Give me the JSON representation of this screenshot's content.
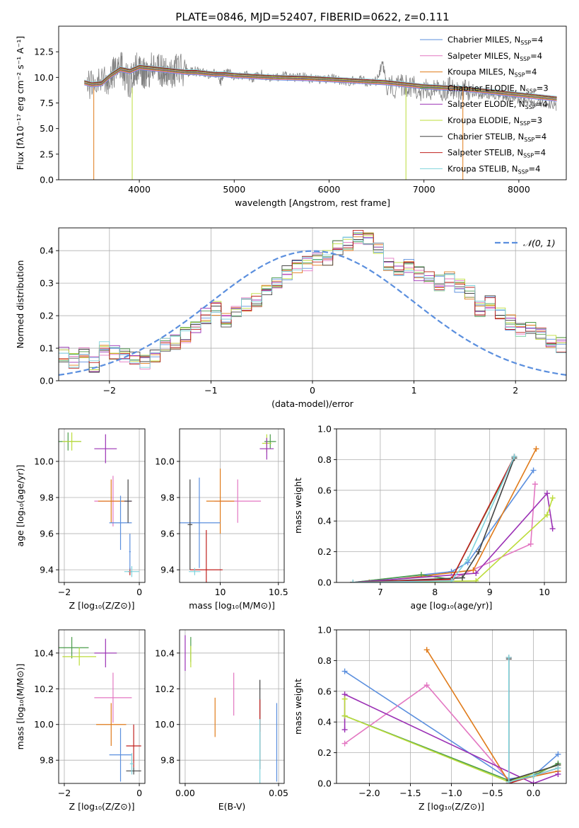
{
  "figure": {
    "title": "PLATE=0846, MJD=52407, FIBERID=0622, z=0.111"
  },
  "chart_data": [
    {
      "id": "spectrum",
      "type": "line",
      "title": "PLATE=0846, MJD=52407, FIBERID=0622, z=0.111",
      "xlabel": "wavelength [Angstrom, rest frame]",
      "ylabel": "Flux [fλ10⁻¹⁷ erg cm⁻² s⁻¹ A⁻¹]",
      "xlim": [
        3150,
        8500
      ],
      "ylim": [
        0,
        15
      ],
      "xticks": [
        4000,
        5000,
        6000,
        7000,
        8000
      ],
      "yticks": [
        0.0,
        2.5,
        5.0,
        7.5,
        10.0,
        12.5
      ],
      "grid": false,
      "legend_position": "top-right",
      "data_series": {
        "name": "",
        "color": "#808080",
        "x": [
          3450,
          3550,
          3650,
          3700,
          3750,
          3800,
          3850,
          3900,
          3950,
          4000,
          4050,
          4100,
          4150,
          4200,
          4250,
          4300,
          4350,
          4400,
          4500,
          4600,
          4700,
          4800,
          4860,
          4900,
          5000,
          5100,
          5200,
          5300,
          5400,
          5500,
          5600,
          5700,
          5800,
          5900,
          6000,
          6100,
          6200,
          6300,
          6400,
          6500,
          6563,
          6600,
          6700,
          6800,
          6900,
          7000,
          7100,
          7200,
          7300,
          7400,
          7500,
          7600,
          7700,
          7800,
          7900,
          8000,
          8100,
          8200,
          8300,
          8400
        ],
        "y": [
          9.3,
          9.2,
          9.5,
          10.3,
          10.6,
          11.5,
          10.2,
          9.4,
          10.8,
          11.0,
          10.5,
          10.2,
          11.4,
          11.0,
          10.6,
          10.7,
          10.2,
          10.9,
          10.5,
          10.6,
          10.3,
          10.4,
          9.6,
          10.5,
          10.2,
          10.3,
          10.0,
          10.3,
          9.9,
          10.1,
          10.0,
          10.1,
          9.9,
          9.7,
          9.9,
          9.8,
          9.6,
          9.8,
          9.5,
          9.6,
          11.5,
          9.5,
          9.0,
          9.3,
          9.1,
          8.7,
          8.8,
          8.9,
          9.0,
          8.6,
          8.5,
          8.3,
          8.4,
          8.2,
          8.1,
          7.9,
          7.8,
          7.6,
          7.4,
          7.2
        ]
      },
      "models": [
        {
          "name": "Chabrier MILES, N$_{SSP}$=4",
          "label": "Chabrier MILES, N",
          "sub": "SSP",
          "suffix": "=4",
          "color": "#5b8fde"
        },
        {
          "name": "Salpeter MILES, N$_{SSP}$=4",
          "label": "Salpeter MILES, N",
          "sub": "SSP",
          "suffix": "=4",
          "color": "#e377c2"
        },
        {
          "name": "Kroupa MILES, N$_{SSP}$=4",
          "label": "Kroupa MILES, N",
          "sub": "SSP",
          "suffix": "=4",
          "color": "#e07b1a"
        },
        {
          "name": "Chabrier ELODIE, N$_{SSP}$=3",
          "label": "Chabrier ELODIE, N",
          "sub": "SSP",
          "suffix": "=3",
          "color": "#4a9c4a"
        },
        {
          "name": "Salpeter ELODIE, N$_{SSP}$=4",
          "label": "Salpeter ELODIE, N",
          "sub": "SSP",
          "suffix": "=4",
          "color": "#9b30b5"
        },
        {
          "name": "Kroupa ELODIE, N$_{SSP}$=3",
          "label": "Kroupa ELODIE, N",
          "sub": "SSP",
          "suffix": "=3",
          "color": "#bcdc3a"
        },
        {
          "name": "Chabrier STELIB, N$_{SSP}$=4",
          "label": "Chabrier STELIB, N",
          "sub": "SSP",
          "suffix": "=4",
          "color": "#444444"
        },
        {
          "name": "Salpeter STELIB, N$_{SSP}$=4",
          "label": "Salpeter STELIB, N",
          "sub": "SSP",
          "suffix": "=4",
          "color": "#c0201e"
        },
        {
          "name": "Kroupa STELIB, N$_{SSP}$=4",
          "label": "Kroupa STELIB, N",
          "sub": "SSP",
          "suffix": "=4",
          "color": "#7fd3dc"
        }
      ],
      "model_curve": {
        "x": [
          3420,
          3500,
          3600,
          3700,
          3800,
          3900,
          4000,
          4100,
          4200,
          4300,
          4400,
          4500,
          4600,
          4700,
          4800,
          4900,
          5000,
          5200,
          5400,
          5600,
          5800,
          6000,
          6200,
          6400,
          6600,
          6800,
          7000,
          7200,
          7400,
          7600,
          7800,
          8000,
          8200,
          8400
        ],
        "y": [
          9.5,
          9.3,
          9.4,
          10.2,
          10.8,
          10.6,
          11.0,
          10.9,
          10.8,
          10.7,
          10.6,
          10.5,
          10.5,
          10.4,
          10.3,
          10.3,
          10.2,
          10.1,
          10.0,
          9.95,
          9.9,
          9.8,
          9.7,
          9.6,
          9.5,
          9.3,
          9.1,
          9.0,
          8.9,
          8.7,
          8.5,
          8.3,
          8.1,
          7.9
        ]
      }
    },
    {
      "id": "residuals",
      "type": "step",
      "xlabel": "(data-model)/error",
      "ylabel": "Normed distribution",
      "xlim": [
        -2.5,
        2.5
      ],
      "ylim": [
        0,
        0.47
      ],
      "xticks": [
        -2,
        -1,
        0,
        1,
        2
      ],
      "yticks": [
        0.0,
        0.1,
        0.2,
        0.3,
        0.4
      ],
      "grid": true,
      "legend_position": "top-right",
      "gaussian_label": "𝒩(0, 1)",
      "gaussian_color": "#5b8fde",
      "bin_width": 0.1,
      "bin_start": -2.5,
      "hist_values": [
        0.08,
        0.06,
        0.08,
        0.05,
        0.1,
        0.09,
        0.08,
        0.07,
        0.06,
        0.08,
        0.11,
        0.12,
        0.14,
        0.16,
        0.2,
        0.22,
        0.19,
        0.21,
        0.23,
        0.25,
        0.27,
        0.3,
        0.33,
        0.35,
        0.36,
        0.37,
        0.38,
        0.41,
        0.42,
        0.44,
        0.43,
        0.4,
        0.36,
        0.34,
        0.35,
        0.33,
        0.32,
        0.3,
        0.31,
        0.29,
        0.27,
        0.22,
        0.24,
        0.2,
        0.18,
        0.16,
        0.17,
        0.14,
        0.12,
        0.11
      ],
      "hist_spread": 0.025
    },
    {
      "id": "age_vs_Z",
      "type": "errorbar",
      "xlabel": "Z [log₁₀(Z/Z⊙)]",
      "ylabel": "age  [log₁₀(age/yr)]",
      "xlim": [
        -2.15,
        0.15
      ],
      "ylim": [
        9.33,
        10.18
      ],
      "xticks": [
        -2,
        0
      ],
      "yticks": [
        9.4,
        9.6,
        9.8,
        10.0
      ],
      "grid": true,
      "points": [
        {
          "x": -1.9,
          "y": 10.11,
          "xerr": 0.35,
          "yerr": 0.05,
          "color": "#4a9c4a"
        },
        {
          "x": -1.8,
          "y": 10.11,
          "xerr": 0.25,
          "yerr": 0.05,
          "color": "#bcdc3a"
        },
        {
          "x": -0.9,
          "y": 10.07,
          "xerr": 0.3,
          "yerr": 0.08,
          "color": "#9b30b5"
        },
        {
          "x": -0.7,
          "y": 9.78,
          "xerr": 0.5,
          "yerr": 0.14,
          "color": "#e377c2"
        },
        {
          "x": -0.75,
          "y": 9.78,
          "xerr": 0.35,
          "yerr": 0.12,
          "color": "#e07b1a"
        },
        {
          "x": -0.5,
          "y": 9.66,
          "xerr": 0.3,
          "yerr": 0.15,
          "color": "#5b8fde"
        },
        {
          "x": -0.3,
          "y": 9.78,
          "xerr": 0.1,
          "yerr": 0.12,
          "color": "#444444"
        },
        {
          "x": -0.25,
          "y": 9.39,
          "xerr": 0.05,
          "yerr": 0.02,
          "color": "#c0201e"
        },
        {
          "x": -0.2,
          "y": 9.39,
          "xerr": 0.2,
          "yerr": 0.03,
          "color": "#7fd3dc"
        },
        {
          "x": -0.25,
          "y": 9.5,
          "xerr": 0.02,
          "yerr": 0.1,
          "color": "#5b8fde"
        }
      ]
    },
    {
      "id": "age_vs_mass",
      "type": "errorbar",
      "xlabel": "mass [log₁₀(M/M⊙)]",
      "ylabel": "",
      "xlim": [
        9.65,
        10.55
      ],
      "ylim": [
        9.33,
        10.18
      ],
      "xticks": [
        10.0,
        10.5
      ],
      "xtick_labels": [
        "10",
        "10.5"
      ],
      "yticks": [
        9.4,
        9.6,
        9.8,
        10.0
      ],
      "grid": true,
      "points": [
        {
          "x": 10.43,
          "y": 10.11,
          "xerr": 0.05,
          "yerr": 0.04,
          "color": "#4a9c4a"
        },
        {
          "x": 10.4,
          "y": 10.1,
          "xerr": 0.04,
          "yerr": 0.05,
          "color": "#bcdc3a"
        },
        {
          "x": 10.4,
          "y": 10.07,
          "xerr": 0.06,
          "yerr": 0.06,
          "color": "#9b30b5"
        },
        {
          "x": 10.15,
          "y": 9.78,
          "xerr": 0.2,
          "yerr": 0.12,
          "color": "#e377c2"
        },
        {
          "x": 10.0,
          "y": 9.78,
          "xerr": 0.12,
          "yerr": 0.18,
          "color": "#e07b1a"
        },
        {
          "x": 9.82,
          "y": 9.66,
          "xerr": 0.18,
          "yerr": 0.25,
          "color": "#5b8fde"
        },
        {
          "x": 9.74,
          "y": 9.65,
          "xerr": 0.02,
          "yerr": 0.25,
          "color": "#444444"
        },
        {
          "x": 9.88,
          "y": 9.4,
          "xerr": 0.14,
          "yerr": 0.22,
          "color": "#c0201e"
        },
        {
          "x": 9.78,
          "y": 9.39,
          "xerr": 0.05,
          "yerr": 0.02,
          "color": "#7fd3dc"
        }
      ]
    },
    {
      "id": "massweight_vs_age",
      "type": "line",
      "xlabel": "age  [log₁₀(age/yr)]",
      "ylabel": "mass weight",
      "xlim": [
        6.2,
        10.4
      ],
      "ylim": [
        0,
        1
      ],
      "xticks": [
        7,
        8,
        9,
        10
      ],
      "yticks": [
        0.0,
        0.2,
        0.4,
        0.6,
        0.8,
        1.0
      ],
      "grid": true,
      "series": [
        {
          "color": "#5b8fde",
          "x": [
            6.5,
            8.3,
            8.6,
            9.8
          ],
          "y": [
            0.0,
            0.07,
            0.13,
            0.73
          ]
        },
        {
          "color": "#e377c2",
          "x": [
            6.5,
            8.3,
            9.75,
            9.83
          ],
          "y": [
            0.0,
            0.02,
            0.25,
            0.64
          ]
        },
        {
          "color": "#e07b1a",
          "x": [
            6.8,
            8.7,
            9.85
          ],
          "y": [
            0.0,
            0.08,
            0.87
          ]
        },
        {
          "color": "#4a9c4a",
          "x": [
            6.5,
            7.75,
            8.3,
            9.45
          ],
          "y": [
            0.0,
            0.05,
            0.02,
            0.81
          ]
        },
        {
          "color": "#9b30b5",
          "x": [
            6.5,
            8.75,
            10.05,
            10.15
          ],
          "y": [
            0.0,
            0.06,
            0.58,
            0.35
          ]
        },
        {
          "color": "#bcdc3a",
          "x": [
            6.5,
            8.75,
            10.05,
            10.15
          ],
          "y": [
            0.0,
            0.01,
            0.44,
            0.55
          ]
        },
        {
          "color": "#444444",
          "x": [
            6.5,
            8.5,
            8.8,
            9.45
          ],
          "y": [
            0.0,
            0.03,
            0.2,
            0.81
          ]
        },
        {
          "color": "#c0201e",
          "x": [
            6.5,
            8.3,
            9.45
          ],
          "y": [
            0.0,
            0.02,
            0.82
          ]
        },
        {
          "color": "#7fd3dc",
          "x": [
            6.5,
            8.3,
            8.6,
            9.45
          ],
          "y": [
            0.0,
            0.01,
            0.15,
            0.82
          ]
        }
      ]
    },
    {
      "id": "mass_vs_Z",
      "type": "errorbar",
      "xlabel": "Z [log₁₀(Z/Z⊙)]",
      "ylabel": "mass [log₁₀(M/M⊙)]",
      "xlim": [
        -2.15,
        0.15
      ],
      "ylim": [
        9.67,
        10.53
      ],
      "xticks": [
        -2,
        0
      ],
      "yticks": [
        9.8,
        10.0,
        10.2,
        10.4
      ],
      "grid": true,
      "points": [
        {
          "x": -1.8,
          "y": 10.43,
          "xerr": 0.45,
          "yerr": 0.06,
          "color": "#4a9c4a"
        },
        {
          "x": -1.6,
          "y": 10.38,
          "xerr": 0.45,
          "yerr": 0.05,
          "color": "#bcdc3a"
        },
        {
          "x": -0.9,
          "y": 10.4,
          "xerr": 0.3,
          "yerr": 0.08,
          "color": "#9b30b5"
        },
        {
          "x": -0.7,
          "y": 10.15,
          "xerr": 0.5,
          "yerr": 0.14,
          "color": "#e377c2"
        },
        {
          "x": -0.75,
          "y": 10.0,
          "xerr": 0.4,
          "yerr": 0.12,
          "color": "#e07b1a"
        },
        {
          "x": -0.5,
          "y": 9.83,
          "xerr": 0.3,
          "yerr": 0.15,
          "color": "#5b8fde"
        },
        {
          "x": -0.15,
          "y": 9.88,
          "xerr": 0.2,
          "yerr": 0.12,
          "color": "#c0201e"
        },
        {
          "x": -0.15,
          "y": 9.74,
          "xerr": 0.2,
          "yerr": 0.02,
          "color": "#444444"
        },
        {
          "x": -0.2,
          "y": 9.78,
          "xerr": 0.05,
          "yerr": 0.06,
          "color": "#7fd3dc"
        }
      ]
    },
    {
      "id": "mass_vs_EBV",
      "type": "errorbar",
      "xlabel": "E(B-V)",
      "ylabel": "",
      "xlim": [
        -0.003,
        0.053
      ],
      "ylim": [
        9.67,
        10.53
      ],
      "xticks": [
        0.0,
        0.05
      ],
      "xtick_labels": [
        "0.00",
        "0.05"
      ],
      "yticks": [
        9.8,
        10.0,
        10.2,
        10.4
      ],
      "grid": true,
      "points": [
        {
          "x": 0.0,
          "y": 10.4,
          "xerr": 0,
          "yerr": 0.1,
          "color": "#9b30b5"
        },
        {
          "x": 0.003,
          "y": 10.42,
          "xerr": 0,
          "yerr": 0.07,
          "color": "#4a9c4a"
        },
        {
          "x": 0.003,
          "y": 10.38,
          "xerr": 0,
          "yerr": 0.06,
          "color": "#bcdc3a"
        },
        {
          "x": 0.026,
          "y": 10.17,
          "xerr": 0,
          "yerr": 0.12,
          "color": "#e377c2"
        },
        {
          "x": 0.016,
          "y": 10.04,
          "xerr": 0,
          "yerr": 0.11,
          "color": "#e07b1a"
        },
        {
          "x": 0.04,
          "y": 10.0,
          "xerr": 0,
          "yerr": 0.25,
          "color": "#444444"
        },
        {
          "x": 0.04,
          "y": 10.05,
          "xerr": 0,
          "yerr": 0.09,
          "color": "#c0201e"
        },
        {
          "x": 0.04,
          "y": 9.83,
          "xerr": 0,
          "yerr": 0.2,
          "color": "#7fd3dc"
        },
        {
          "x": 0.049,
          "y": 9.9,
          "xerr": 0,
          "yerr": 0.22,
          "color": "#5b8fde"
        }
      ]
    },
    {
      "id": "massweight_vs_Z",
      "type": "line",
      "xlabel": "Z [log₁₀(Z/Z⊙)]",
      "ylabel": "mass weight",
      "xlim": [
        -2.4,
        0.4
      ],
      "ylim": [
        0,
        1
      ],
      "xticks": [
        -2.0,
        -1.5,
        -1.0,
        -0.5,
        0.0
      ],
      "xtick_labels": [
        "−2.0",
        "−1.5",
        "−1.0",
        "−0.5",
        "0.0"
      ],
      "yticks": [
        0.0,
        0.2,
        0.4,
        0.6,
        0.8,
        1.0
      ],
      "grid": true,
      "series": [
        {
          "color": "#5b8fde",
          "x": [
            -2.3,
            -0.3,
            0.0,
            0.3
          ],
          "y": [
            0.73,
            0.03,
            0.05,
            0.19
          ]
        },
        {
          "color": "#e377c2",
          "x": [
            -2.3,
            -1.3,
            -0.3,
            0.3
          ],
          "y": [
            0.26,
            0.64,
            0.02,
            0.08
          ]
        },
        {
          "color": "#e07b1a",
          "x": [
            -1.3,
            -0.3,
            0.3
          ],
          "y": [
            0.87,
            0.01,
            0.08
          ]
        },
        {
          "color": "#4a9c4a",
          "x": [
            -2.3,
            -0.3,
            0.0,
            0.3
          ],
          "y": [
            0.44,
            0.02,
            0.05,
            0.13
          ]
        },
        {
          "color": "#9b30b5",
          "x": [
            -2.3,
            -2.3,
            0.0,
            0.3
          ],
          "y": [
            0.35,
            0.58,
            0.0,
            0.06
          ]
        },
        {
          "color": "#bcdc3a",
          "x": [
            -2.3,
            -2.3,
            -0.3,
            0.3
          ],
          "y": [
            0.55,
            0.44,
            0.01,
            0.12
          ]
        },
        {
          "color": "#444444",
          "x": [
            -0.3,
            -0.3,
            0.3
          ],
          "y": [
            0.81,
            0.02,
            0.12
          ]
        },
        {
          "color": "#c0201e",
          "x": [
            -0.3,
            -0.3,
            0.3
          ],
          "y": [
            0.82,
            0.0,
            0.1
          ]
        },
        {
          "color": "#7fd3dc",
          "x": [
            -0.3,
            -0.3,
            0.0,
            0.3
          ],
          "y": [
            0.82,
            0.01,
            0.05,
            0.1
          ]
        }
      ]
    }
  ]
}
